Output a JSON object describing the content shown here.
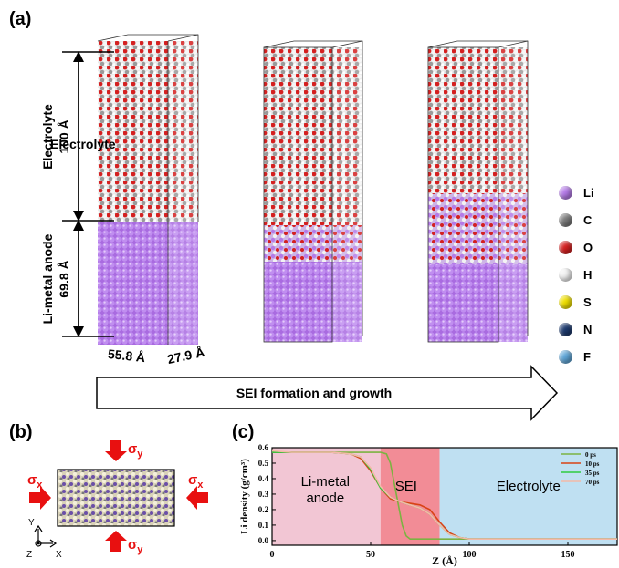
{
  "panels": {
    "a": "(a)",
    "b": "(b)",
    "c": "(c)"
  },
  "panel_a": {
    "electrolyte_label": "Electrolyte",
    "electrolyte_dim": "100 Å",
    "anode_label": "Li-metal anode",
    "anode_dim": "69.8 Å",
    "width_x": "55.8 Å",
    "width_y": "27.9 Å",
    "arrow_text": "SEI formation and growth"
  },
  "legend": [
    {
      "label": "Li",
      "color": "#b57be8"
    },
    {
      "label": "C",
      "color": "#7a7a7a"
    },
    {
      "label": "O",
      "color": "#d42020"
    },
    {
      "label": "H",
      "color": "#f2f2f2"
    },
    {
      "label": "S",
      "color": "#f0e000"
    },
    {
      "label": "N",
      "color": "#1d3a6e"
    },
    {
      "label": "F",
      "color": "#5fa6d8"
    }
  ],
  "panel_b": {
    "sigma_y": "σy",
    "sigma_x": "σx",
    "axis_y": "Y",
    "axis_z": "Z",
    "axis_x": "X"
  },
  "chart_data": {
    "type": "line",
    "xlabel": "Z (Å)",
    "ylabel": "Li density (g/cm³)",
    "xlim": [
      0,
      175
    ],
    "ylim": [
      -0.03,
      0.6
    ],
    "xticks": [
      "0",
      "50",
      "100",
      "150"
    ],
    "yticks": [
      "0.0",
      "0.1",
      "0.2",
      "0.3",
      "0.4",
      "0.5",
      "0.6"
    ],
    "regions": [
      {
        "label": "Li-metal anode",
        "from": 0,
        "to": 55,
        "color": "#f2c6d4"
      },
      {
        "label": "SEI",
        "from": 55,
        "to": 85,
        "color": "#f28c96"
      },
      {
        "label": "Electrolyte",
        "from": 85,
        "to": 175,
        "color": "#bfe0f2"
      }
    ],
    "series": [
      {
        "name": "0 ps",
        "color": "#7cb342",
        "x": [
          0,
          10,
          20,
          30,
          40,
          50,
          55,
          58,
          60,
          63,
          66,
          68,
          70,
          75,
          80,
          90,
          100,
          120,
          150,
          175
        ],
        "y": [
          0.57,
          0.57,
          0.57,
          0.57,
          0.57,
          0.57,
          0.57,
          0.56,
          0.5,
          0.3,
          0.1,
          0.03,
          0.01,
          0.01,
          0.01,
          0.01,
          0.01,
          0.01,
          0.01,
          0.01
        ]
      },
      {
        "name": "10 ps",
        "color": "#d84315",
        "x": [
          0,
          10,
          20,
          30,
          40,
          45,
          50,
          55,
          60,
          65,
          70,
          75,
          80,
          85,
          90,
          95,
          100,
          120,
          150,
          175
        ],
        "y": [
          0.57,
          0.57,
          0.57,
          0.57,
          0.56,
          0.53,
          0.45,
          0.34,
          0.27,
          0.25,
          0.24,
          0.23,
          0.2,
          0.12,
          0.05,
          0.02,
          0.01,
          0.01,
          0.01,
          0.01
        ]
      },
      {
        "name": "35 ps",
        "color": "#2ecc40",
        "x": [
          0,
          10,
          20,
          30,
          40,
          45,
          50,
          55,
          60,
          65,
          70,
          75,
          80,
          85,
          90,
          95,
          100,
          120,
          150,
          175
        ],
        "y": [
          0.57,
          0.57,
          0.57,
          0.57,
          0.56,
          0.54,
          0.46,
          0.34,
          0.28,
          0.25,
          0.23,
          0.21,
          0.17,
          0.1,
          0.04,
          0.02,
          0.01,
          0.01,
          0.01,
          0.01
        ]
      },
      {
        "name": "70 ps",
        "color": "#f4b9a8",
        "x": [
          0,
          10,
          20,
          30,
          40,
          45,
          50,
          55,
          60,
          65,
          70,
          75,
          80,
          85,
          90,
          95,
          100,
          120,
          150,
          175
        ],
        "y": [
          0.58,
          0.57,
          0.57,
          0.57,
          0.56,
          0.54,
          0.47,
          0.35,
          0.28,
          0.25,
          0.23,
          0.21,
          0.17,
          0.1,
          0.04,
          0.02,
          0.01,
          0.01,
          0.01,
          0.01
        ]
      }
    ]
  }
}
